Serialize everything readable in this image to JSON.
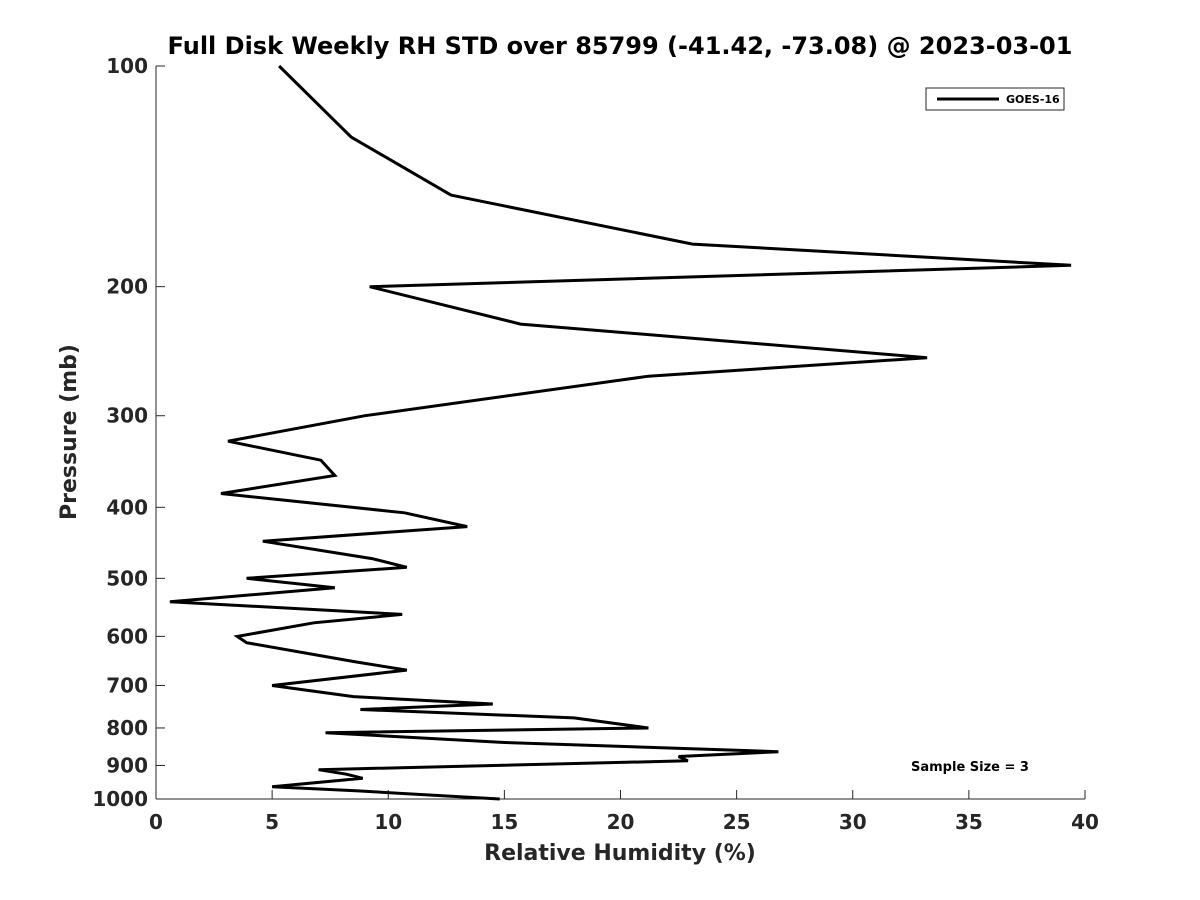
{
  "chart_data": {
    "type": "line",
    "title": "Full Disk Weekly RH STD over 85799 (-41.42, -73.08) @ 2023-03-01",
    "xlabel": "Relative Humidity (%)",
    "ylabel": "Pressure (mb)",
    "xlim": [
      0,
      40
    ],
    "ylim": [
      100,
      1000
    ],
    "yscale": "log",
    "yreversed": true,
    "grid": false,
    "xticks": [
      0,
      5,
      10,
      15,
      20,
      25,
      30,
      35,
      40
    ],
    "xtick_labels": [
      "0",
      "5",
      "10",
      "15",
      "20",
      "25",
      "30",
      "35",
      "40"
    ],
    "yticks": [
      100,
      200,
      300,
      400,
      500,
      600,
      700,
      800,
      900,
      1000
    ],
    "ytick_labels": [
      "100",
      "200",
      "300",
      "400",
      "500",
      "600",
      "700",
      "800",
      "900",
      "1000"
    ],
    "legend": {
      "position": "top-right",
      "entries": [
        "GOES-16"
      ]
    },
    "annotation": "Sample Size = 3",
    "series": [
      {
        "name": "GOES-16",
        "color": "#000000",
        "points": [
          [
            5.3,
            100
          ],
          [
            8.4,
            125
          ],
          [
            12.7,
            150
          ],
          [
            23.1,
            175
          ],
          [
            39.4,
            187
          ],
          [
            9.2,
            200
          ],
          [
            15.7,
            225
          ],
          [
            33.2,
            250
          ],
          [
            21.2,
            265
          ],
          [
            9.0,
            300
          ],
          [
            3.1,
            325
          ],
          [
            7.1,
            345
          ],
          [
            7.7,
            362
          ],
          [
            2.8,
            383
          ],
          [
            10.7,
            407
          ],
          [
            13.4,
            425
          ],
          [
            4.6,
            445
          ],
          [
            9.3,
            470
          ],
          [
            10.8,
            483
          ],
          [
            3.9,
            500
          ],
          [
            7.7,
            515
          ],
          [
            0.6,
            538
          ],
          [
            10.6,
            560
          ],
          [
            6.8,
            575
          ],
          [
            3.5,
            600
          ],
          [
            3.9,
            612
          ],
          [
            8.6,
            650
          ],
          [
            10.8,
            667
          ],
          [
            5.0,
            700
          ],
          [
            8.5,
            725
          ],
          [
            14.5,
            742
          ],
          [
            8.8,
            755
          ],
          [
            18.0,
            775
          ],
          [
            21.2,
            800
          ],
          [
            7.3,
            812
          ],
          [
            14.9,
            837
          ],
          [
            26.8,
            862
          ],
          [
            22.5,
            875
          ],
          [
            22.9,
            887
          ],
          [
            7.0,
            912
          ],
          [
            8.2,
            925
          ],
          [
            8.9,
            937
          ],
          [
            5.0,
            962
          ],
          [
            8.7,
            975
          ],
          [
            14.8,
            1000
          ]
        ]
      }
    ]
  }
}
